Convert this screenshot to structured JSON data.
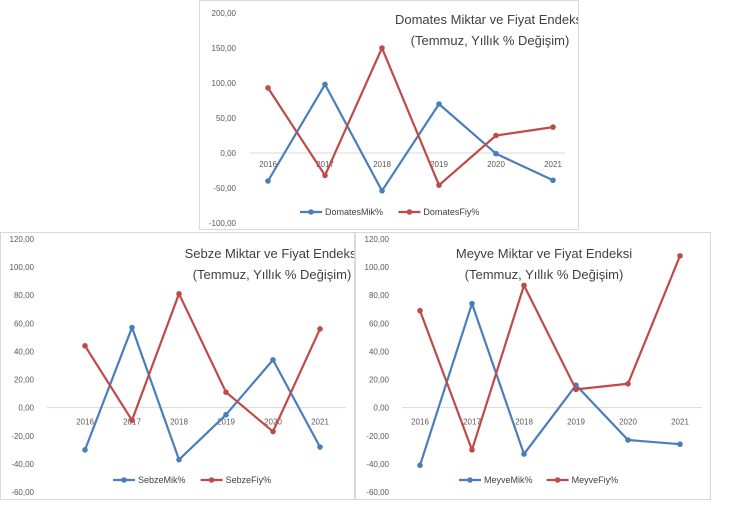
{
  "chart_data": [
    {
      "type": "line",
      "title": "Domates Miktar ve Fiyat Endeksi",
      "subtitle": "(Temmuz, Yıllık % Değişim)",
      "categories": [
        "2016",
        "2017",
        "2018",
        "2019",
        "2020",
        "2021"
      ],
      "ylim": [
        -100,
        200
      ],
      "yticks": [
        -100,
        -50,
        0,
        50,
        100,
        150,
        200
      ],
      "ytick_labels": [
        "-100,00",
        "-50,00",
        "0,00",
        "50,00",
        "100,00",
        "150,00",
        "200,00"
      ],
      "grid": false,
      "legend": "bottom",
      "series": [
        {
          "name": "DomatesMik%",
          "color": "#4a7ebb",
          "values": [
            -40,
            98,
            -54,
            70,
            -1,
            -39
          ]
        },
        {
          "name": "DomatesFiy%",
          "color": "#be4b48",
          "values": [
            93,
            -32,
            150,
            -46,
            25,
            37
          ]
        }
      ]
    },
    {
      "type": "line",
      "title": "Sebze Miktar ve Fiyat Endeksi",
      "subtitle": "(Temmuz, Yıllık % Değişim)",
      "categories": [
        "2016",
        "2017",
        "2018",
        "2019",
        "2020",
        "2021"
      ],
      "ylim": [
        -60,
        120
      ],
      "yticks": [
        -60,
        -40,
        -20,
        0,
        20,
        40,
        60,
        80,
        100,
        120
      ],
      "ytick_labels": [
        "-60,00",
        "-40,00",
        "-20,00",
        "0,00",
        "20,00",
        "40,00",
        "60,00",
        "80,00",
        "100,00",
        "120,00"
      ],
      "grid": false,
      "legend": "bottom",
      "series": [
        {
          "name": "SebzeMik%",
          "color": "#4a7ebb",
          "values": [
            -30,
            57,
            -37,
            -5,
            34,
            -28
          ]
        },
        {
          "name": "SebzeFiy%",
          "color": "#be4b48",
          "values": [
            44,
            -9,
            81,
            11,
            -17,
            56
          ]
        }
      ]
    },
    {
      "type": "line",
      "title": "Meyve Miktar ve Fiyat Endeksi",
      "subtitle": "(Temmuz, Yıllık % Değişim)",
      "categories": [
        "2016",
        "2017",
        "2018",
        "2019",
        "2020",
        "2021"
      ],
      "ylim": [
        -60,
        120
      ],
      "yticks": [
        -60,
        -40,
        -20,
        0,
        20,
        40,
        60,
        80,
        100,
        120
      ],
      "ytick_labels": [
        "-60,00",
        "-40,00",
        "-20,00",
        "0,00",
        "20,00",
        "40,00",
        "60,00",
        "80,00",
        "100,00",
        "120,00"
      ],
      "grid": false,
      "legend": "bottom",
      "series": [
        {
          "name": "MeyveMik%",
          "color": "#4a7ebb",
          "values": [
            -41,
            74,
            -33,
            16,
            -23,
            -26
          ]
        },
        {
          "name": "MeyveFiy%",
          "color": "#be4b48",
          "values": [
            69,
            -30,
            87,
            13,
            17,
            108
          ]
        }
      ]
    }
  ]
}
